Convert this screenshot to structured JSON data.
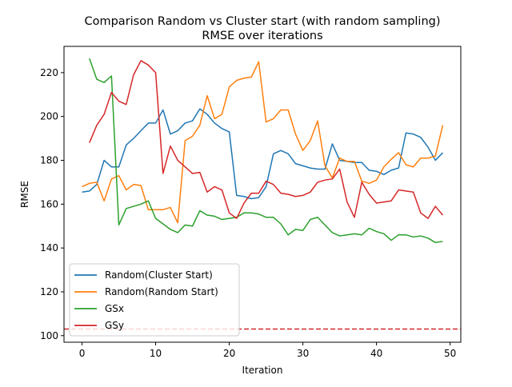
{
  "chart_data": {
    "type": "line",
    "title": "Comparison Random vs Cluster start (with random sampling)",
    "subtitle": "RMSE over iterations",
    "xlabel": "Iteration",
    "ylabel": "RMSE",
    "xlim": [
      -2.45,
      51.45
    ],
    "ylim": [
      97,
      232
    ],
    "xticks": [
      0,
      10,
      20,
      30,
      40,
      50
    ],
    "yticks": [
      100,
      120,
      140,
      160,
      180,
      200,
      220
    ],
    "grid": false,
    "legend_position": "lower-left",
    "reference_line": {
      "y": 103,
      "color": "#d62728",
      "style": "dashed"
    },
    "series": [
      {
        "name": "Random(Cluster Start)",
        "color": "#1f77b4",
        "x_start": 0,
        "values": [
          165.5,
          166.0,
          169.0,
          180.0,
          177.0,
          177.0,
          187.0,
          190.0,
          193.5,
          197.0,
          197.0,
          203.0,
          192.0,
          193.5,
          197.0,
          198.0,
          203.5,
          201.0,
          197.0,
          194.5,
          193.0,
          164.0,
          163.5,
          162.5,
          163.0,
          168.0,
          183.0,
          184.5,
          183.0,
          178.5,
          177.5,
          176.5,
          176.0,
          176.0,
          187.5,
          180.0,
          179.5,
          179.0,
          179.0,
          175.5,
          175.0,
          173.5,
          175.5,
          176.5,
          192.5,
          192.0,
          190.5,
          186.0,
          180.0,
          183.5
        ]
      },
      {
        "name": "Random(Random Start)",
        "color": "#ff7f0e",
        "x_start": 0,
        "values": [
          168.0,
          169.5,
          170.0,
          161.5,
          171.5,
          173.0,
          166.5,
          169.0,
          168.5,
          157.5,
          157.5,
          157.5,
          158.5,
          151.5,
          189.0,
          191.0,
          196.0,
          209.5,
          199.0,
          201.0,
          213.5,
          216.5,
          217.5,
          218.0,
          225.0,
          197.5,
          199.0,
          203.0,
          203.0,
          192.0,
          184.5,
          189.0,
          198.0,
          177.5,
          172.0,
          181.0,
          179.5,
          179.5,
          170.5,
          169.5,
          171.0,
          177.0,
          180.5,
          183.5,
          178.0,
          177.0,
          181.0,
          181.0,
          182.0,
          196.0
        ]
      },
      {
        "name": "GSx",
        "color": "#2ca02c",
        "x_start": 1,
        "values": [
          226.5,
          217.0,
          215.5,
          218.5,
          150.5,
          158.0,
          159.0,
          160.0,
          161.5,
          153.5,
          151.0,
          148.5,
          147.0,
          150.5,
          150.0,
          157.0,
          155.0,
          154.5,
          153.0,
          153.5,
          154.0,
          156.0,
          156.0,
          155.5,
          154.0,
          154.0,
          151.0,
          146.0,
          148.5,
          148.0,
          153.0,
          154.0,
          150.5,
          147.0,
          145.5,
          146.0,
          146.5,
          146.0,
          149.0,
          147.5,
          146.5,
          143.5,
          146.0,
          146.0,
          145.0,
          145.5,
          144.5,
          142.5,
          143.0
        ]
      },
      {
        "name": "GSy",
        "color": "#d62728",
        "x_start": 1,
        "values": [
          188.0,
          196.0,
          201.0,
          211.0,
          207.0,
          205.5,
          219.0,
          225.5,
          223.5,
          220.0,
          174.0,
          186.5,
          180.0,
          177.0,
          174.0,
          174.5,
          165.5,
          168.0,
          166.5,
          156.0,
          153.5,
          160.5,
          165.0,
          165.0,
          170.5,
          169.0,
          165.0,
          164.5,
          163.5,
          164.0,
          165.5,
          170.0,
          171.0,
          171.5,
          176.0,
          161.0,
          154.0,
          170.0,
          164.5,
          160.5,
          161.0,
          161.5,
          166.5,
          166.0,
          165.5,
          156.0,
          153.5,
          159.0,
          155.0
        ]
      }
    ]
  }
}
